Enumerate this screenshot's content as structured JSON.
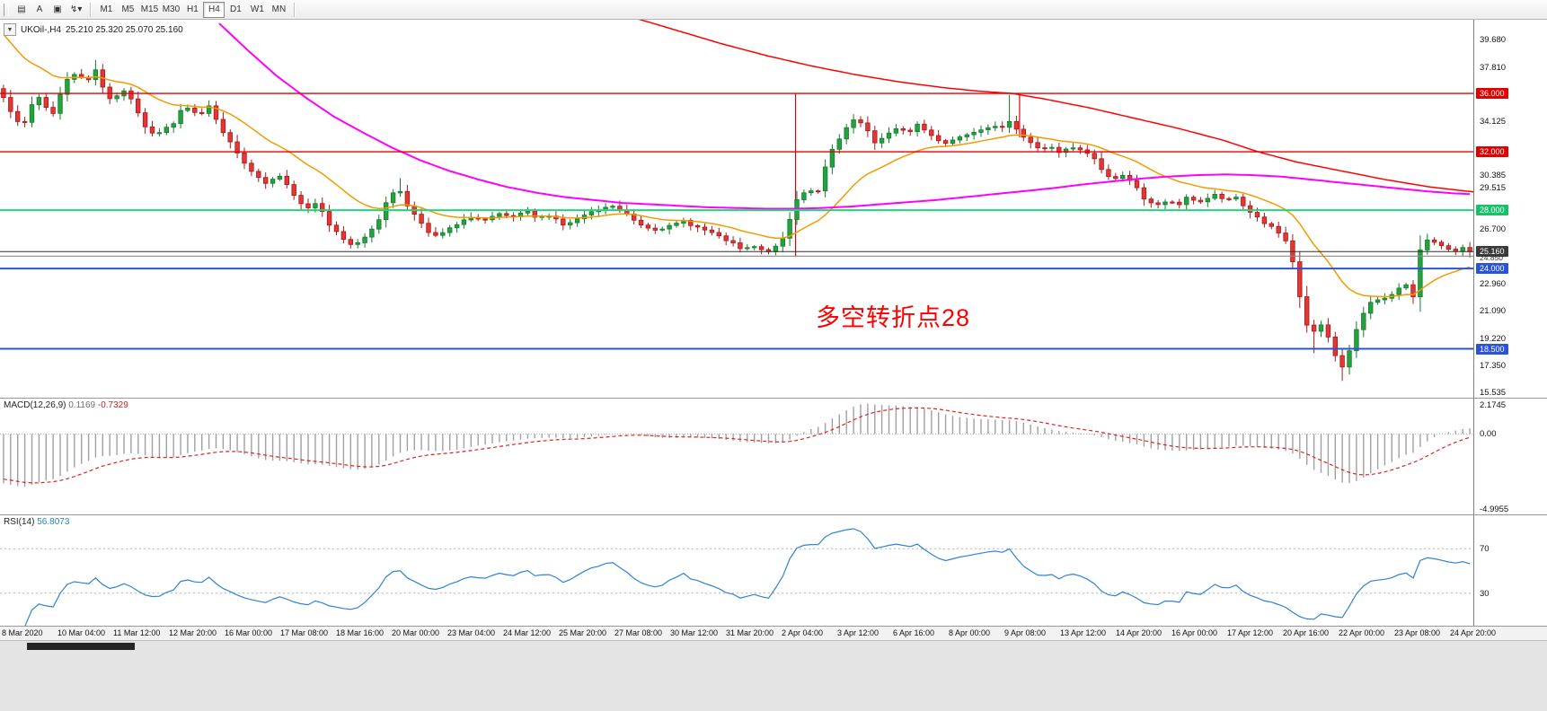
{
  "toolbar": {
    "tools": [
      {
        "name": "bar-chart-icon",
        "glyph": "▤"
      },
      {
        "name": "auto-scroll-button",
        "glyph": "A"
      },
      {
        "name": "chart-shift-icon",
        "glyph": "▣"
      },
      {
        "name": "quick-indicator-dropdown",
        "glyph": "↯▾"
      }
    ],
    "timeframes": [
      {
        "label": "M1",
        "active": false
      },
      {
        "label": "M5",
        "active": false
      },
      {
        "label": "M15",
        "active": false
      },
      {
        "label": "M30",
        "active": false
      },
      {
        "label": "H1",
        "active": false
      },
      {
        "label": "H4",
        "active": true
      },
      {
        "label": "D1",
        "active": false
      },
      {
        "label": "W1",
        "active": false
      },
      {
        "label": "MN",
        "active": false
      }
    ]
  },
  "chart": {
    "symbol_label": "UKOil-,H4",
    "ohlc": "25.210 25.320 25.070 25.160",
    "annotation": {
      "text": "多空转折点28",
      "color": "#ff0000"
    },
    "price_axis": {
      "min": 15.15,
      "max": 41.05,
      "labels": [
        {
          "value": "39.680"
        },
        {
          "value": "37.810"
        },
        {
          "value": "36.000",
          "badge": "red"
        },
        {
          "value": "34.125"
        },
        {
          "value": "32.000",
          "badge": "red"
        },
        {
          "value": "30.385"
        },
        {
          "value": "29.515"
        },
        {
          "value": "28.000",
          "badge": "green"
        },
        {
          "value": "26.700"
        },
        {
          "value": "25.160",
          "badge": "current"
        },
        {
          "value": "24.850",
          "small": true
        },
        {
          "value": "24.000",
          "badge": "blue"
        },
        {
          "value": "22.960"
        },
        {
          "value": "21.090"
        },
        {
          "value": "19.220"
        },
        {
          "value": "18.500",
          "badge": "blue"
        },
        {
          "value": "17.350"
        },
        {
          "value": "15.535"
        }
      ]
    },
    "hlines": [
      {
        "value": 36.0,
        "color": "#e60000",
        "width": 1.4
      },
      {
        "value": 32.0,
        "color": "#e60000",
        "width": 1.4
      },
      {
        "value": 28.0,
        "color": "#20d878",
        "width": 2
      },
      {
        "value": 24.0,
        "color": "#2b54d4",
        "width": 2
      },
      {
        "value": 18.5,
        "color": "#2b54d4",
        "width": 2
      },
      {
        "value": 24.85,
        "color": "#8a8a8a",
        "width": 1.2
      },
      {
        "value": 25.16,
        "color": "#2e2e2e",
        "width": 1,
        "current": true
      }
    ],
    "vlines": [
      {
        "frac": 0.54,
        "from": 36.0,
        "to": 24.85
      },
      {
        "frac": 0.692,
        "from": 36.0,
        "to": 33.0
      }
    ]
  },
  "indicators": {
    "macd": {
      "name": "MACD(12,26,9)",
      "value_main": "0.1169",
      "value_signal": "-0.7329",
      "range": [
        -4.9955,
        2.1745
      ],
      "axis_labels": [
        "2.1745",
        "0.00",
        "-4.9955"
      ],
      "fast": 12,
      "slow": 26,
      "signal": 9
    },
    "rsi": {
      "name": "RSI(14)",
      "value": "56.8073",
      "period": 14,
      "levels": [
        70,
        30
      ],
      "range": [
        0,
        100
      ]
    }
  },
  "chart_data": {
    "type": "candlestick",
    "symbol": "UKOil-",
    "timeframe": "H4",
    "title": "UKOil-,H4 25.210 25.320 25.070 25.160",
    "candles": 208,
    "seed": 7,
    "noise": 0.16,
    "last_close": 25.16,
    "pre_history": {
      "from": 52,
      "candles": 30
    },
    "price_path": [
      [
        0,
        35.8
      ],
      [
        0.008,
        34.2
      ],
      [
        0.013,
        33.6
      ],
      [
        0.02,
        35.4
      ],
      [
        0.026,
        35.9
      ],
      [
        0.032,
        34.2
      ],
      [
        0.042,
        36.8
      ],
      [
        0.049,
        37.4
      ],
      [
        0.058,
        36.9
      ],
      [
        0.062,
        37.8
      ],
      [
        0.068,
        36.4
      ],
      [
        0.071,
        35.6
      ],
      [
        0.078,
        35.9
      ],
      [
        0.084,
        36.3
      ],
      [
        0.09,
        35.0
      ],
      [
        0.094,
        34.1
      ],
      [
        0.1,
        33.3
      ],
      [
        0.104,
        33.1
      ],
      [
        0.11,
        33.8
      ],
      [
        0.114,
        33.6
      ],
      [
        0.119,
        34.6
      ],
      [
        0.123,
        35.2
      ],
      [
        0.128,
        34.8
      ],
      [
        0.133,
        34.5
      ],
      [
        0.14,
        35.1
      ],
      [
        0.145,
        34.2
      ],
      [
        0.149,
        33.4
      ],
      [
        0.155,
        32.6
      ],
      [
        0.159,
        31.9
      ],
      [
        0.165,
        31.1
      ],
      [
        0.169,
        30.6
      ],
      [
        0.175,
        30.1
      ],
      [
        0.179,
        29.9
      ],
      [
        0.184,
        30.2
      ],
      [
        0.188,
        30.4
      ],
      [
        0.193,
        29.8
      ],
      [
        0.198,
        29.1
      ],
      [
        0.203,
        28.5
      ],
      [
        0.208,
        28.1
      ],
      [
        0.214,
        28.6
      ],
      [
        0.218,
        27.8
      ],
      [
        0.221,
        27.1
      ],
      [
        0.226,
        26.6
      ],
      [
        0.23,
        26.1
      ],
      [
        0.237,
        25.6
      ],
      [
        0.244,
        25.9
      ],
      [
        0.25,
        26.6
      ],
      [
        0.256,
        27.4
      ],
      [
        0.263,
        28.9
      ],
      [
        0.269,
        29.6
      ],
      [
        0.273,
        28.9
      ],
      [
        0.276,
        28.1
      ],
      [
        0.282,
        27.6
      ],
      [
        0.287,
        26.9
      ],
      [
        0.292,
        26.1
      ],
      [
        0.297,
        26.3
      ],
      [
        0.302,
        26.6
      ],
      [
        0.307,
        26.9
      ],
      [
        0.312,
        27.1
      ],
      [
        0.318,
        27.6
      ],
      [
        0.323,
        27.4
      ],
      [
        0.328,
        27.3
      ],
      [
        0.333,
        27.5
      ],
      [
        0.338,
        27.7
      ],
      [
        0.342,
        27.6
      ],
      [
        0.347,
        27.5
      ],
      [
        0.352,
        27.7
      ],
      [
        0.357,
        27.9
      ],
      [
        0.361,
        27.6
      ],
      [
        0.364,
        27.4
      ],
      [
        0.369,
        27.6
      ],
      [
        0.373,
        27.7
      ],
      [
        0.378,
        27.3
      ],
      [
        0.383,
        26.9
      ],
      [
        0.388,
        27.2
      ],
      [
        0.393,
        27.5
      ],
      [
        0.398,
        27.7
      ],
      [
        0.403,
        27.9
      ],
      [
        0.409,
        28.1
      ],
      [
        0.416,
        28.3
      ],
      [
        0.42,
        28.0
      ],
      [
        0.425,
        27.7
      ],
      [
        0.43,
        27.3
      ],
      [
        0.435,
        27.0
      ],
      [
        0.44,
        26.8
      ],
      [
        0.445,
        26.7
      ],
      [
        0.45,
        26.8
      ],
      [
        0.455,
        26.9
      ],
      [
        0.46,
        27.1
      ],
      [
        0.464,
        27.3
      ],
      [
        0.469,
        27.0
      ],
      [
        0.474,
        26.8
      ],
      [
        0.479,
        26.6
      ],
      [
        0.484,
        26.4
      ],
      [
        0.489,
        26.1
      ],
      [
        0.494,
        25.9
      ],
      [
        0.499,
        25.6
      ],
      [
        0.503,
        25.3
      ],
      [
        0.508,
        25.4
      ],
      [
        0.513,
        25.5
      ],
      [
        0.519,
        25.1
      ],
      [
        0.524,
        25.3
      ],
      [
        0.529,
        25.6
      ],
      [
        0.535,
        26.8
      ],
      [
        0.539,
        28.6
      ],
      [
        0.545,
        29.1
      ],
      [
        0.549,
        29.6
      ],
      [
        0.552,
        29.2
      ],
      [
        0.555,
        29.1
      ],
      [
        0.559,
        30.3
      ],
      [
        0.562,
        31.6
      ],
      [
        0.565,
        32.1
      ],
      [
        0.568,
        32.6
      ],
      [
        0.572,
        33.1
      ],
      [
        0.575,
        33.6
      ],
      [
        0.578,
        34.0
      ],
      [
        0.581,
        34.3
      ],
      [
        0.585,
        33.9
      ],
      [
        0.588,
        33.6
      ],
      [
        0.591,
        33.1
      ],
      [
        0.594,
        32.6
      ],
      [
        0.598,
        32.9
      ],
      [
        0.601,
        33.1
      ],
      [
        0.606,
        33.4
      ],
      [
        0.61,
        33.6
      ],
      [
        0.614,
        33.4
      ],
      [
        0.617,
        33.3
      ],
      [
        0.62,
        33.6
      ],
      [
        0.623,
        33.9
      ],
      [
        0.628,
        33.5
      ],
      [
        0.633,
        33.1
      ],
      [
        0.638,
        32.8
      ],
      [
        0.643,
        32.6
      ],
      [
        0.649,
        32.9
      ],
      [
        0.654,
        33.1
      ],
      [
        0.659,
        33.3
      ],
      [
        0.664,
        33.5
      ],
      [
        0.669,
        33.6
      ],
      [
        0.675,
        33.9
      ],
      [
        0.678,
        33.7
      ],
      [
        0.682,
        33.6
      ],
      [
        0.687,
        34.1
      ],
      [
        0.691,
        33.6
      ],
      [
        0.695,
        33.1
      ],
      [
        0.698,
        32.9
      ],
      [
        0.701,
        32.6
      ],
      [
        0.705,
        32.3
      ],
      [
        0.708,
        32.1
      ],
      [
        0.714,
        32.4
      ],
      [
        0.718,
        32.1
      ],
      [
        0.721,
        31.9
      ],
      [
        0.727,
        32.3
      ],
      [
        0.731,
        32.2
      ],
      [
        0.734,
        32.1
      ],
      [
        0.739,
        31.9
      ],
      [
        0.743,
        31.6
      ],
      [
        0.747,
        31.1
      ],
      [
        0.75,
        30.6
      ],
      [
        0.756,
        30.1
      ],
      [
        0.763,
        30.4
      ],
      [
        0.768,
        30.0
      ],
      [
        0.773,
        29.6
      ],
      [
        0.776,
        29.1
      ],
      [
        0.779,
        28.6
      ],
      [
        0.784,
        28.4
      ],
      [
        0.789,
        28.3
      ],
      [
        0.795,
        28.7
      ],
      [
        0.798,
        28.5
      ],
      [
        0.802,
        28.4
      ],
      [
        0.805,
        28.7
      ],
      [
        0.808,
        28.9
      ],
      [
        0.812,
        28.7
      ],
      [
        0.815,
        28.5
      ],
      [
        0.818,
        28.7
      ],
      [
        0.821,
        28.8
      ],
      [
        0.825,
        29.0
      ],
      [
        0.828,
        29.1
      ],
      [
        0.831,
        28.8
      ],
      [
        0.834,
        28.6
      ],
      [
        0.838,
        28.8
      ],
      [
        0.841,
        28.9
      ],
      [
        0.844,
        28.5
      ],
      [
        0.847,
        28.1
      ],
      [
        0.85,
        27.9
      ],
      [
        0.854,
        27.6
      ],
      [
        0.857,
        27.4
      ],
      [
        0.86,
        27.1
      ],
      [
        0.864,
        26.9
      ],
      [
        0.867,
        26.6
      ],
      [
        0.87,
        26.4
      ],
      [
        0.873,
        26.1
      ],
      [
        0.877,
        25.3
      ],
      [
        0.88,
        24.1
      ],
      [
        0.883,
        22.6
      ],
      [
        0.886,
        21.1
      ],
      [
        0.889,
        20.1
      ],
      [
        0.893,
        19.6
      ],
      [
        0.896,
        19.9
      ],
      [
        0.899,
        20.1
      ],
      [
        0.903,
        19.4
      ],
      [
        0.906,
        18.6
      ],
      [
        0.909,
        17.8
      ],
      [
        0.912,
        17.1
      ],
      [
        0.916,
        17.9
      ],
      [
        0.919,
        18.6
      ],
      [
        0.922,
        19.6
      ],
      [
        0.925,
        20.6
      ],
      [
        0.929,
        21.1
      ],
      [
        0.932,
        21.6
      ],
      [
        0.935,
        21.8
      ],
      [
        0.938,
        21.9
      ],
      [
        0.942,
        22.0
      ],
      [
        0.945,
        22.1
      ],
      [
        0.948,
        22.4
      ],
      [
        0.951,
        22.6
      ],
      [
        0.955,
        22.8
      ],
      [
        0.958,
        22.9
      ],
      [
        0.961,
        21.9
      ],
      [
        0.963,
        22.4
      ],
      [
        0.965,
        24.6
      ],
      [
        0.968,
        26.4
      ],
      [
        0.971,
        26.0
      ],
      [
        0.975,
        25.9
      ],
      [
        0.978,
        25.8
      ],
      [
        0.981,
        25.5
      ],
      [
        0.984,
        25.3
      ],
      [
        0.988,
        25.2
      ],
      [
        0.991,
        25.1
      ],
      [
        0.995,
        25.4
      ],
      [
        1,
        25.16
      ]
    ],
    "wick_events": [
      {
        "frac": 0.062,
        "high": 38.3
      },
      {
        "frac": 0.269,
        "high": 30.2
      },
      {
        "frac": 0.539,
        "high": 28.9
      },
      {
        "frac": 0.687,
        "high": 35.9
      },
      {
        "frac": 0.893,
        "low": 18.2
      },
      {
        "frac": 0.912,
        "low": 16.3
      }
    ],
    "ma_fast": {
      "type": "ema",
      "period": 18,
      "color": "#f59a00"
    },
    "ma_mid": {
      "color": "#ff00ff",
      "points": [
        [
          0.149,
          40.8
        ],
        [
          0.169,
          38.9
        ],
        [
          0.188,
          37.2
        ],
        [
          0.208,
          35.7
        ],
        [
          0.227,
          34.4
        ],
        [
          0.247,
          33.3
        ],
        [
          0.266,
          32.3
        ],
        [
          0.286,
          31.4
        ],
        [
          0.305,
          30.7
        ],
        [
          0.325,
          30.1
        ],
        [
          0.344,
          29.6
        ],
        [
          0.364,
          29.2
        ],
        [
          0.383,
          28.9
        ],
        [
          0.403,
          28.7
        ],
        [
          0.422,
          28.5
        ],
        [
          0.442,
          28.4
        ],
        [
          0.461,
          28.3
        ],
        [
          0.481,
          28.2
        ],
        [
          0.5,
          28.15
        ],
        [
          0.519,
          28.1
        ],
        [
          0.539,
          28.1
        ],
        [
          0.558,
          28.15
        ],
        [
          0.578,
          28.25
        ],
        [
          0.597,
          28.4
        ],
        [
          0.617,
          28.55
        ],
        [
          0.636,
          28.7
        ],
        [
          0.656,
          28.9
        ],
        [
          0.675,
          29.1
        ],
        [
          0.695,
          29.3
        ],
        [
          0.714,
          29.5
        ],
        [
          0.734,
          29.75
        ],
        [
          0.753,
          29.95
        ],
        [
          0.773,
          30.15
        ],
        [
          0.792,
          30.3
        ],
        [
          0.812,
          30.4
        ],
        [
          0.831,
          30.45
        ],
        [
          0.851,
          30.4
        ],
        [
          0.87,
          30.3
        ],
        [
          0.89,
          30.1
        ],
        [
          0.909,
          29.9
        ],
        [
          0.929,
          29.7
        ],
        [
          0.948,
          29.5
        ],
        [
          0.968,
          29.3
        ],
        [
          0.987,
          29.15
        ],
        [
          1,
          29.1
        ]
      ]
    },
    "ma_slow": {
      "color": "#ff0000",
      "points": [
        [
          0.4,
          42.2
        ],
        [
          0.43,
          41.2
        ],
        [
          0.46,
          40.3
        ],
        [
          0.49,
          39.4
        ],
        [
          0.52,
          38.6
        ],
        [
          0.55,
          37.9
        ],
        [
          0.58,
          37.3
        ],
        [
          0.61,
          36.8
        ],
        [
          0.64,
          36.4
        ],
        [
          0.665,
          36.15
        ],
        [
          0.687,
          36.0
        ],
        [
          0.71,
          35.6
        ],
        [
          0.74,
          35.0
        ],
        [
          0.77,
          34.3
        ],
        [
          0.8,
          33.6
        ],
        [
          0.83,
          32.8
        ],
        [
          0.854,
          32.0
        ],
        [
          0.88,
          31.3
        ],
        [
          0.91,
          30.7
        ],
        [
          0.94,
          30.1
        ],
        [
          0.97,
          29.6
        ],
        [
          1,
          29.25
        ]
      ]
    },
    "colors": {
      "up": "#23a33f",
      "up_stroke": "#157a2c",
      "down": "#e33636",
      "down_stroke": "#aa1818",
      "macd_hist": "#a0a0a0",
      "macd_signal": "#e02222",
      "rsi": "#2f82d6"
    },
    "time_labels": [
      "8 Mar 2020",
      "10 Mar 04:00",
      "11 Mar 12:00",
      "12 Mar 20:00",
      "16 Mar 00:00",
      "17 Mar 08:00",
      "18 Mar 16:00",
      "20 Mar 00:00",
      "23 Mar 04:00",
      "24 Mar 12:00",
      "25 Mar 20:00",
      "27 Mar 08:00",
      "30 Mar 12:00",
      "31 Mar 20:00",
      "2 Apr 04:00",
      "3 Apr 12:00",
      "6 Apr 16:00",
      "8 Apr 00:00",
      "9 Apr 08:00",
      "13 Apr 12:00",
      "14 Apr 20:00",
      "16 Apr 00:00",
      "17 Apr 12:00",
      "20 Apr 16:00",
      "22 Apr 00:00",
      "23 Apr 08:00",
      "24 Apr 20:00"
    ]
  }
}
